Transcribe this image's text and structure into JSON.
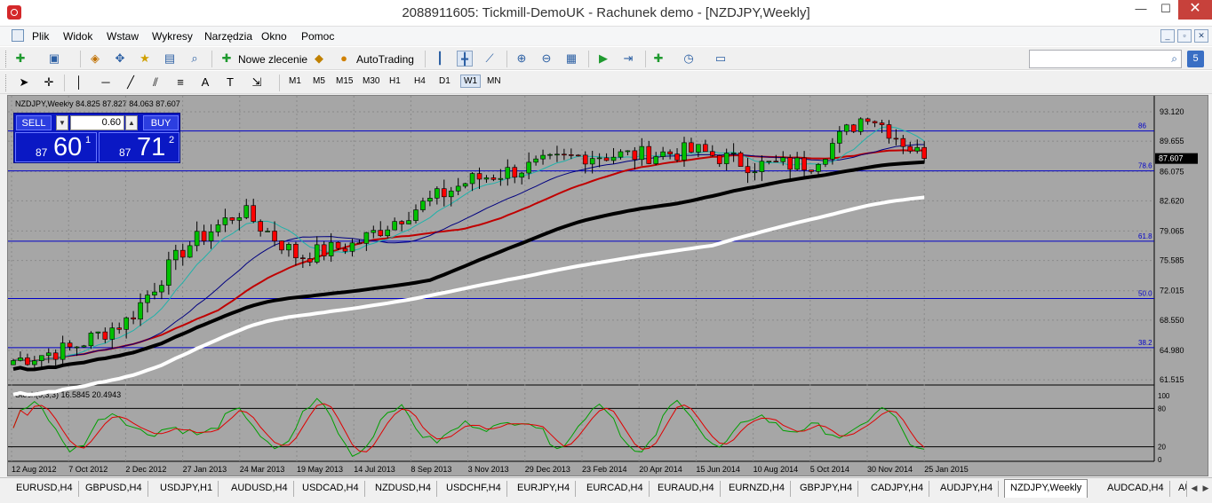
{
  "window": {
    "title": "2088911605: Tickmill-DemoUK - Rachunek demo - [NZDJPY,Weekly]",
    "minimize": "—",
    "maximize": "☐",
    "close": "✕"
  },
  "menu": {
    "items": [
      "Plik",
      "Widok",
      "Wstaw",
      "Wykresy",
      "Narzędzia",
      "Okno",
      "Pomoc"
    ],
    "mdi": [
      "_",
      "▫",
      "✕"
    ]
  },
  "toolbar": {
    "new_order_label": "Nowe zlecenie",
    "autotrading_label": "AutoTrading",
    "timeframes": [
      "M1",
      "M5",
      "M15",
      "M30",
      "H1",
      "H4",
      "D1",
      "W1",
      "MN"
    ],
    "active_timeframe": "W1",
    "search_placeholder": ""
  },
  "chart": {
    "header": "NZDJPY,Weekly  84.825 87.827 84.063 87.607",
    "current_price": "87.607",
    "price_labels": [
      "93.120",
      "89.655",
      "86.075",
      "82.620",
      "79.065",
      "75.585",
      "72.015",
      "68.550",
      "64.980",
      "61.515"
    ],
    "fib_labels": [
      "86",
      "78.6",
      "61.8",
      "50.0",
      "38.2"
    ],
    "date_labels": [
      "12 Aug 2012",
      "7 Oct 2012",
      "2 Dec 2012",
      "27 Jan 2013",
      "24 Mar 2013",
      "19 May 2013",
      "14 Jul 2013",
      "8 Sep 2013",
      "3 Nov 2013",
      "29 Dec 2013",
      "23 Feb 2014",
      "20 Apr 2014",
      "15 Jun 2014",
      "10 Aug 2014",
      "5 Oct 2014",
      "30 Nov 2014",
      "25 Jan 2015"
    ],
    "stoch_header": "Stoch(5,3,3) 16.5845 20.4943",
    "stoch_levels": [
      "100",
      "80",
      "20",
      "0"
    ],
    "colors": {
      "background": "#a6a6a6",
      "bull": "#00c000",
      "bear": "#ff0000",
      "fib": "#0000c8",
      "sma_black": "#000000",
      "sma_white": "#ffffff",
      "ma_red": "#c00000",
      "ma_navy": "#000080",
      "ma_teal": "#20b2aa"
    }
  },
  "chart_data": {
    "type": "line",
    "title": "NZDJPY,Weekly",
    "ohlc_last": {
      "open": 84.825,
      "high": 87.827,
      "low": 84.063,
      "close": 87.607
    },
    "ylim": [
      61.515,
      94.8
    ],
    "x": [
      "12 Aug 2012",
      "7 Oct 2012",
      "2 Dec 2012",
      "27 Jan 2013",
      "24 Mar 2013",
      "19 May 2013",
      "14 Jul 2013",
      "8 Sep 2013",
      "3 Nov 2013",
      "29 Dec 2013",
      "23 Feb 2014",
      "20 Apr 2014",
      "15 Jun 2014",
      "10 Aug 2014",
      "5 Oct 2014",
      "30 Nov 2014",
      "25 Jan 2015"
    ],
    "series": [
      {
        "values": [
          63.8,
          65.2,
          68.5,
          77.0,
          81.5,
          76.0,
          77.5,
          81.5,
          85.0,
          86.5,
          88.0,
          88.0,
          88.5,
          86.8,
          87.0,
          93.0,
          87.6
        ]
      }
    ],
    "fib_levels": [
      {
        "label": "86",
        "value": 90.85
      },
      {
        "label": "78.6",
        "value": 86.15
      },
      {
        "label": "61.8",
        "value": 77.85
      },
      {
        "label": "50.0",
        "value": 71.1
      },
      {
        "label": "38.2",
        "value": 65.3
      }
    ]
  },
  "trade_panel": {
    "sell_label": "SELL",
    "buy_label": "BUY",
    "lot": "0.60",
    "sell_small": "87",
    "sell_big": "60",
    "sell_sup": "1",
    "buy_small": "87",
    "buy_big": "71",
    "buy_sup": "2"
  },
  "tabs": [
    "EURUSD,H4",
    "GBPUSD,H4",
    "USDJPY,H1",
    "AUDUSD,H4",
    "USDCAD,H4",
    "NZDUSD,H4",
    "USDCHF,H4",
    "EURJPY,H4",
    "EURCAD,H4",
    "EURAUD,H4",
    "EURNZD,H4",
    "GBPJPY,H4",
    "CADJPY,H4",
    "AUDJPY,H4",
    "NZDJPY,Weekly",
    "AUDCAD,H4",
    "AUD"
  ],
  "active_tab": "NZDJPY,Weekly"
}
